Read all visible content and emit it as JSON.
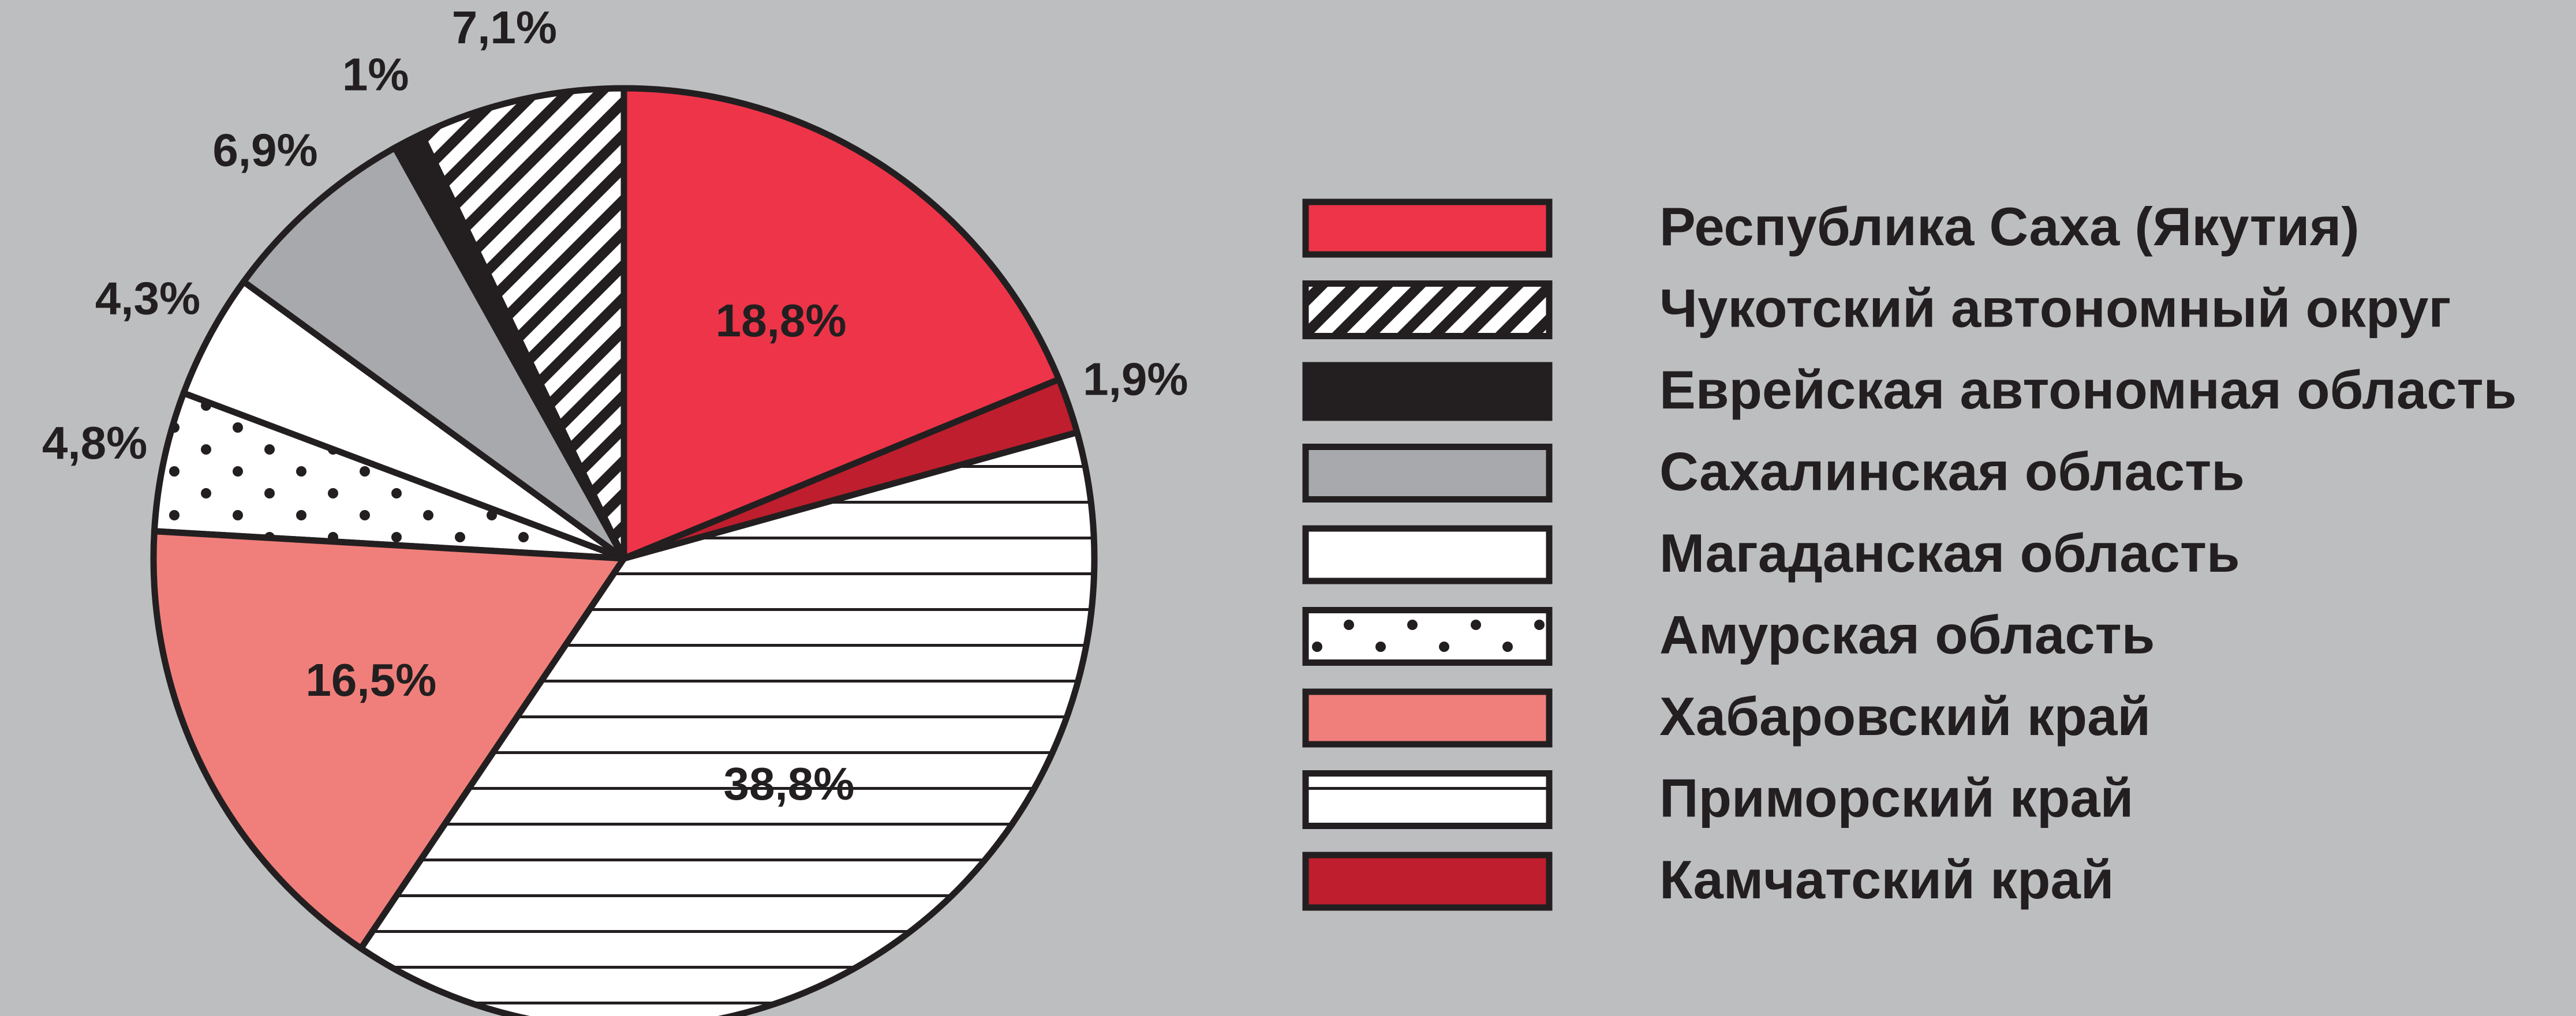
{
  "chart_data": {
    "type": "pie",
    "categories": [
      "Республика Саха (Якутия)",
      "Чукотский автономный округ",
      "Еврейская автономная область",
      "Сахалинская область",
      "Магаданская область",
      "Амурская область",
      "Хабаровский край",
      "Приморский край",
      "Камчатский край"
    ],
    "values": [
      18.8,
      7.1,
      1,
      6.9,
      4.3,
      4.8,
      16.5,
      38.8,
      1.9
    ],
    "value_labels": [
      "18,8%",
      "7,1%",
      "1%",
      "6,9%",
      "4,3%",
      "4,8%",
      "16,5%",
      "38,8%",
      "1,9%"
    ],
    "colors": [
      "#ee3449",
      "#ffffff",
      "#231f20",
      "#a7a9ac",
      "#ffffff",
      "#ffffff",
      "#f07f7b",
      "#ffffff",
      "#be1e2d"
    ],
    "hatch": [
      null,
      "diagonal",
      null,
      null,
      null,
      "dots",
      null,
      "horizontal",
      null
    ],
    "legend": "right"
  }
}
